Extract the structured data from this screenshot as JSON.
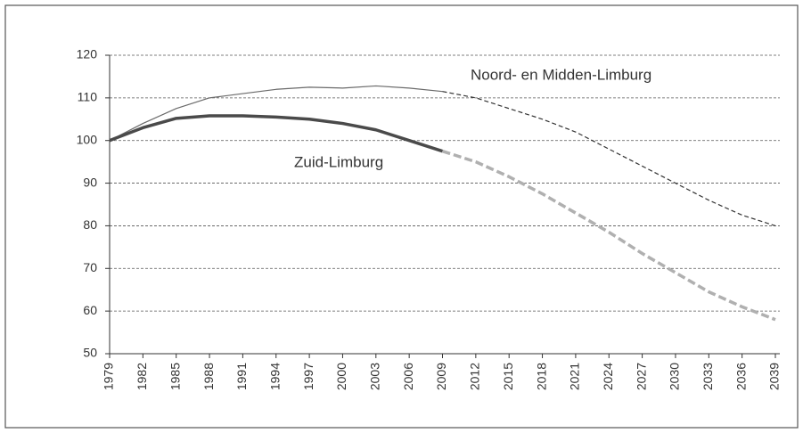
{
  "chart_data": {
    "type": "line",
    "x": [
      1979,
      1982,
      1985,
      1988,
      1991,
      1994,
      1997,
      2000,
      2003,
      2006,
      2009,
      2012,
      2015,
      2018,
      2021,
      2024,
      2027,
      2030,
      2033,
      2036,
      2039
    ],
    "series": [
      {
        "name": "Noord- en Midden-Limburg",
        "color": "#6a6a6a",
        "projection_color": "#333333",
        "width": 1.2,
        "values": [
          100,
          104,
          107.5,
          110,
          111,
          112,
          112.5,
          112.3,
          112.8,
          112.3,
          111.5,
          110,
          107.5,
          105,
          102,
          98,
          94,
          90,
          86,
          82.5,
          80
        ]
      },
      {
        "name": "Zuid-Limburg",
        "color": "#4a4a4a",
        "projection_color": "#b0b0b0",
        "width": 3.5,
        "values": [
          100,
          103,
          105.2,
          105.8,
          105.8,
          105.5,
          105,
          104,
          102.5,
          100,
          97.5,
          95,
          91.5,
          87.5,
          83,
          78.5,
          73.5,
          69,
          64.5,
          61,
          58
        ]
      }
    ],
    "dashed_from": 2009,
    "xlim": [
      1979,
      2039
    ],
    "xticks": [
      1979,
      1982,
      1985,
      1988,
      1991,
      1994,
      1997,
      2000,
      2003,
      2006,
      2009,
      2012,
      2015,
      2018,
      2021,
      2024,
      2027,
      2030,
      2033,
      2036,
      2039
    ],
    "ylim": [
      50,
      120
    ],
    "yticks": [
      50,
      60,
      70,
      80,
      90,
      100,
      110,
      120
    ],
    "grid": true
  }
}
